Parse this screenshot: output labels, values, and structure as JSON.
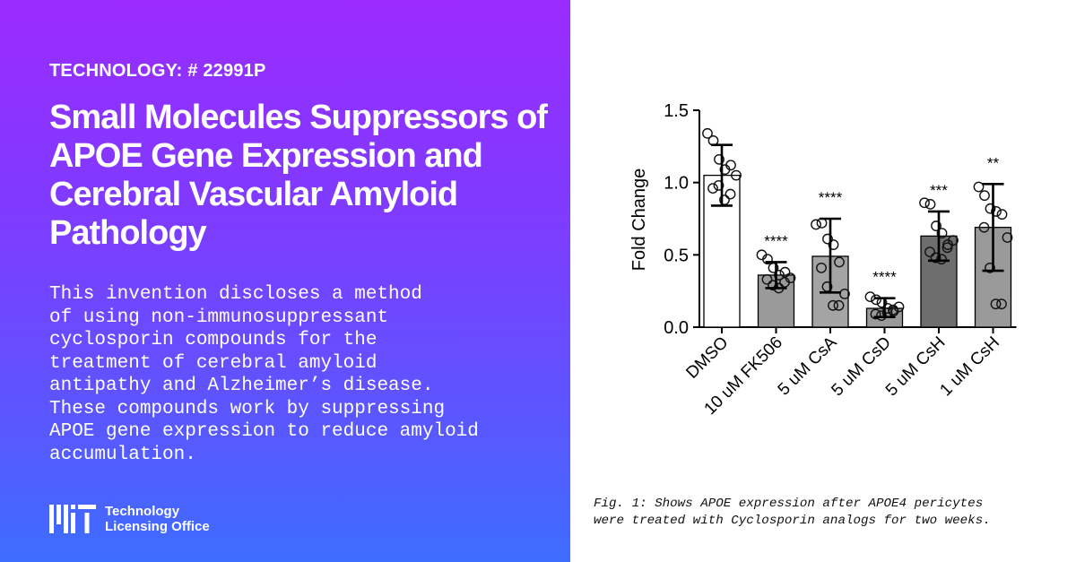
{
  "left": {
    "tech_label": "TECHNOLOGY: # 22991P",
    "title": "Small Molecules Suppressors of APOE Gene Expression and Cerebral Vascular Amyloid Pathology",
    "description": "This invention discloses a method\nof using non-immunosuppressant\ncyclosporin compounds for the\ntreatment of cerebral amyloid\nantipathy and Alzheimer’s disease.\nThese compounds work by suppressing\nAPOE gene expression to reduce amyloid\naccumulation.",
    "logo": {
      "mark": "MIT",
      "line1": "Technology",
      "line2": "Licensing Office"
    }
  },
  "figure_caption": "Fig. 1: Shows APOE expression after APOE4 pericytes\nwere treated with Cyclosporin analogs for two weeks.",
  "chart_data": {
    "type": "bar",
    "ylabel": "Fold Change",
    "ylim": [
      0,
      1.5
    ],
    "yticks": [
      "0.0",
      "0.5",
      "1.0",
      "1.5"
    ],
    "categories": [
      "DMSO",
      "10 uM FK506",
      "5 uM CsA",
      "5 uM CsD",
      "5 uM CsH",
      "1 uM CsH"
    ],
    "values": [
      1.05,
      0.36,
      0.49,
      0.13,
      0.63,
      0.69
    ],
    "error_low": [
      0.84,
      0.27,
      0.24,
      0.07,
      0.46,
      0.39
    ],
    "error_high": [
      1.26,
      0.45,
      0.75,
      0.2,
      0.8,
      0.99
    ],
    "significance": [
      "",
      "****",
      "****",
      "****",
      "***",
      "**"
    ],
    "bar_colors": [
      "#ffffff",
      "#9a9a9a",
      "#a4a4a4",
      "#9a9a9a",
      "#6e6e6e",
      "#9a9a9a"
    ],
    "points": [
      [
        1.34,
        1.29,
        1.16,
        1.09,
        1.12,
        0.96,
        0.98,
        0.88,
        0.92,
        1.05
      ],
      [
        0.5,
        0.47,
        0.41,
        0.36,
        0.38,
        0.33,
        0.29,
        0.27,
        0.31,
        0.34
      ],
      [
        0.71,
        0.72,
        0.61,
        0.57,
        0.45,
        0.41,
        0.28,
        0.15,
        0.15,
        0.23
      ],
      [
        0.21,
        0.19,
        0.17,
        0.13,
        0.11,
        0.09,
        0.08,
        0.1,
        0.12,
        0.14
      ],
      [
        0.86,
        0.85,
        0.7,
        0.65,
        0.57,
        0.52,
        0.48,
        0.47,
        0.55,
        0.6
      ],
      [
        0.97,
        0.91,
        0.82,
        0.8,
        0.78,
        0.69,
        0.41,
        0.16,
        0.16,
        0.62
      ]
    ]
  }
}
